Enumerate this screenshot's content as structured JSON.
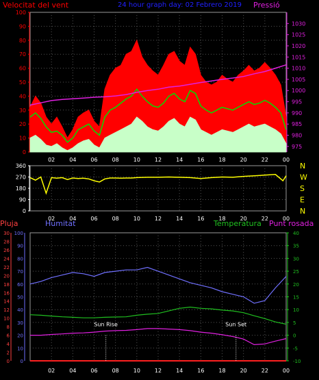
{
  "colors": {
    "background": "#000000",
    "grid": "#555555",
    "frame": "#9a9a9a",
    "wind_avg": "#00e000",
    "wind_gust": "#ff0000",
    "wind_min": "#c8ffc8",
    "pressure": "#e020e0",
    "direction": "#ffff00",
    "humidity": "#7070ff",
    "temperature": "#20c020",
    "dewpoint": "#e020e0",
    "rain": "#ff2020",
    "title": "#2020ff",
    "rain_axis": "#ff4040",
    "hum_axis": "#7070ff",
    "temp_axis": "#20c020",
    "dew_axis": "#e020e0",
    "sun_marker": "#ffffff"
  },
  "x_ticks": [
    "02",
    "04",
    "06",
    "08",
    "10",
    "12",
    "14",
    "16",
    "18",
    "20",
    "22",
    "00"
  ],
  "chart_data": [
    {
      "type": "line",
      "title": "24 hour graph day: 02 Febrero 2019",
      "left_label": "Velocitat del vent",
      "right_label": "Pressió",
      "ylim": [
        0,
        100
      ],
      "y_ticks": [
        0,
        10,
        20,
        30,
        40,
        50,
        60,
        70,
        80,
        90,
        100
      ],
      "y2lim": [
        972.5,
        1035
      ],
      "y2_ticks": [
        975,
        980,
        985,
        990,
        995,
        1000,
        1005,
        1010,
        1015,
        1020,
        1025,
        1030
      ],
      "xlim": [
        0,
        24
      ],
      "series": [
        {
          "key": "wind_gust",
          "x": [
            0,
            0.5,
            1,
            1.5,
            2,
            2.5,
            3,
            3.5,
            4,
            4.5,
            5,
            5.5,
            6,
            6.5,
            7,
            7.5,
            8,
            8.5,
            9,
            9.5,
            10,
            10.5,
            11,
            11.5,
            12,
            12.5,
            13,
            13.5,
            14,
            14.5,
            15,
            15.5,
            16,
            16.5,
            17,
            17.5,
            18,
            18.5,
            19,
            19.5,
            20,
            20.5,
            21,
            21.5,
            22,
            22.5,
            23,
            23.5,
            24
          ],
          "values": [
            32,
            40,
            35,
            25,
            20,
            25,
            18,
            10,
            16,
            25,
            28,
            30,
            22,
            18,
            45,
            55,
            60,
            62,
            70,
            72,
            80,
            68,
            62,
            58,
            55,
            62,
            70,
            72,
            65,
            62,
            75,
            70,
            55,
            50,
            48,
            50,
            55,
            52,
            50,
            55,
            58,
            62,
            58,
            60,
            64,
            60,
            55,
            48,
            25
          ]
        },
        {
          "key": "wind_avg",
          "x": [
            0,
            0.5,
            1,
            1.5,
            2,
            2.5,
            3,
            3.5,
            4,
            4.5,
            5,
            5.5,
            6,
            6.5,
            7,
            7.5,
            8,
            8.5,
            9,
            9.5,
            10,
            10.5,
            11,
            11.5,
            12,
            12.5,
            13,
            13.5,
            14,
            14.5,
            15,
            15.5,
            16,
            16.5,
            17,
            17.5,
            18,
            18.5,
            19,
            19.5,
            20,
            20.5,
            21,
            21.5,
            22,
            22.5,
            23,
            23.5,
            24
          ],
          "values": [
            25,
            28,
            24,
            18,
            14,
            15,
            12,
            7,
            10,
            16,
            18,
            20,
            15,
            12,
            25,
            30,
            32,
            35,
            38,
            40,
            45,
            40,
            36,
            33,
            32,
            35,
            40,
            42,
            38,
            36,
            44,
            42,
            33,
            30,
            28,
            30,
            32,
            31,
            30,
            32,
            34,
            36,
            34,
            35,
            37,
            35,
            32,
            28,
            16
          ]
        },
        {
          "key": "wind_min",
          "x": [
            0,
            0.5,
            1,
            1.5,
            2,
            2.5,
            3,
            3.5,
            4,
            4.5,
            5,
            5.5,
            6,
            6.5,
            7,
            7.5,
            8,
            8.5,
            9,
            9.5,
            10,
            10.5,
            11,
            11.5,
            12,
            12.5,
            13,
            13.5,
            14,
            14.5,
            15,
            15.5,
            16,
            16.5,
            17,
            17.5,
            18,
            18.5,
            19,
            19.5,
            20,
            20.5,
            21,
            21.5,
            22,
            22.5,
            23,
            23.5,
            24
          ],
          "values": [
            10,
            12,
            9,
            5,
            4,
            6,
            3,
            1,
            3,
            6,
            8,
            9,
            5,
            3,
            10,
            12,
            14,
            16,
            18,
            20,
            25,
            22,
            18,
            16,
            15,
            18,
            22,
            24,
            20,
            18,
            25,
            23,
            16,
            14,
            12,
            14,
            16,
            15,
            14,
            16,
            18,
            20,
            18,
            19,
            20,
            18,
            16,
            13,
            6
          ]
        },
        {
          "key": "pressure",
          "axis": "right",
          "x": [
            0,
            1,
            2,
            3,
            4,
            5,
            6,
            7,
            8,
            9,
            10,
            11,
            12,
            13,
            14,
            15,
            16,
            17,
            18,
            19,
            20,
            21,
            22,
            23,
            24
          ],
          "values": [
            993.5,
            994.5,
            995.5,
            996,
            996.3,
            996.6,
            997,
            997.2,
            997.6,
            998.2,
            999.2,
            1000,
            1000.6,
            1001.5,
            1002,
            1002.8,
            1003.6,
            1004.3,
            1005,
            1005.6,
            1006.3,
            1007.5,
            1008.5,
            1010,
            1011.5
          ]
        }
      ]
    },
    {
      "type": "line",
      "ylim": [
        0,
        360
      ],
      "y_ticks": [
        0,
        90,
        180,
        270,
        360
      ],
      "right_labels": [
        "N",
        "W",
        "S",
        "E",
        "N"
      ],
      "series": [
        {
          "key": "direction",
          "x": [
            0,
            0.5,
            1,
            1.5,
            2,
            2.5,
            3,
            3.5,
            4,
            4.5,
            5,
            5.5,
            6,
            6.5,
            7,
            7.5,
            8,
            8.5,
            9,
            9.5,
            10,
            11,
            12,
            13,
            14,
            15,
            16,
            17,
            18,
            19,
            20,
            21,
            22,
            23,
            23.7,
            24
          ],
          "values": [
            265,
            245,
            270,
            140,
            265,
            260,
            265,
            250,
            262,
            258,
            260,
            255,
            240,
            230,
            255,
            262,
            262,
            260,
            262,
            262,
            265,
            268,
            268,
            270,
            268,
            265,
            258,
            265,
            270,
            268,
            275,
            280,
            285,
            290,
            240,
            280
          ]
        }
      ]
    },
    {
      "type": "line",
      "rain_label": "Pluja",
      "humidity_label": "Humitat",
      "temperature_label": "Temperatura",
      "dewpoint_label": "Punt rosada",
      "sunrise_label": "Sun Rise",
      "sunset_label": "Sun Set",
      "sunrise_x": 7.1,
      "sunset_x": 19.3,
      "rain_ylim": [
        0,
        30
      ],
      "rain_ticks": [
        0,
        2,
        4,
        6,
        8,
        10,
        12,
        14,
        16,
        18,
        20,
        22,
        24,
        26,
        28,
        30
      ],
      "humidity_ylim": [
        0,
        100
      ],
      "humidity_ticks": [
        0,
        10,
        20,
        30,
        40,
        50,
        60,
        70,
        80,
        90,
        100
      ],
      "temp_ylim": [
        -10,
        40
      ],
      "temp_ticks": [
        -10,
        -5,
        0,
        5,
        10,
        15,
        20,
        25,
        30,
        35,
        40
      ],
      "series": [
        {
          "key": "humidity",
          "x": [
            0,
            1,
            2,
            3,
            4,
            5,
            6,
            7,
            8,
            9,
            10,
            11,
            12,
            13,
            14,
            15,
            16,
            17,
            18,
            19,
            20,
            21,
            22,
            23,
            24
          ],
          "values": [
            60,
            62,
            65,
            67,
            69,
            68,
            66,
            69,
            70,
            71,
            71,
            73,
            70,
            67,
            64,
            61,
            59,
            57,
            54,
            52,
            50,
            45,
            47,
            57,
            66
          ]
        },
        {
          "key": "temperature",
          "x": [
            0,
            1,
            2,
            3,
            4,
            5,
            6,
            7,
            8,
            9,
            10,
            11,
            12,
            13,
            14,
            15,
            16,
            17,
            18,
            19,
            20,
            21,
            22,
            23,
            24
          ],
          "values": [
            8,
            7.8,
            7.5,
            7.2,
            7,
            6.8,
            6.8,
            7,
            7.1,
            7.2,
            7.8,
            8.2,
            8.5,
            9.5,
            10.5,
            11,
            10.5,
            10.3,
            9.8,
            9.5,
            8.8,
            7.6,
            6.5,
            5.2,
            4.3
          ]
        },
        {
          "key": "dewpoint",
          "x": [
            0,
            1,
            2,
            3,
            4,
            5,
            6,
            7,
            8,
            9,
            10,
            11,
            12,
            13,
            14,
            15,
            16,
            17,
            18,
            19,
            20,
            21,
            22,
            23,
            24
          ],
          "values": [
            0,
            0,
            0.3,
            0.5,
            0.8,
            0.9,
            1.2,
            1.6,
            1.8,
            1.9,
            2.2,
            2.6,
            2.6,
            2.4,
            2.2,
            1.8,
            1.2,
            0.8,
            0.2,
            -0.5,
            -1.5,
            -3.7,
            -3.4,
            -2.3,
            -1.3
          ]
        },
        {
          "key": "rain",
          "x": [
            0,
            24
          ],
          "values": [
            0,
            0
          ]
        }
      ]
    }
  ]
}
